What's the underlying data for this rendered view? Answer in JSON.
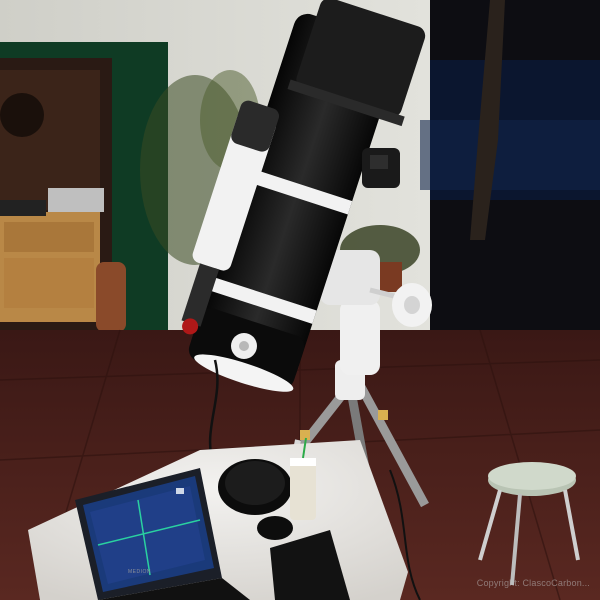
{
  "watermark": {
    "text": "Copyright: ClascoCarbon..."
  },
  "laptop": {
    "brand": "MEDION"
  },
  "colors": {
    "wall": "#d9d9d2",
    "floor": "#4a1f1a",
    "door_frame": "#0f3b24",
    "tube": "#121212",
    "mount": "#eeeeee",
    "table": "#eae8e5"
  }
}
